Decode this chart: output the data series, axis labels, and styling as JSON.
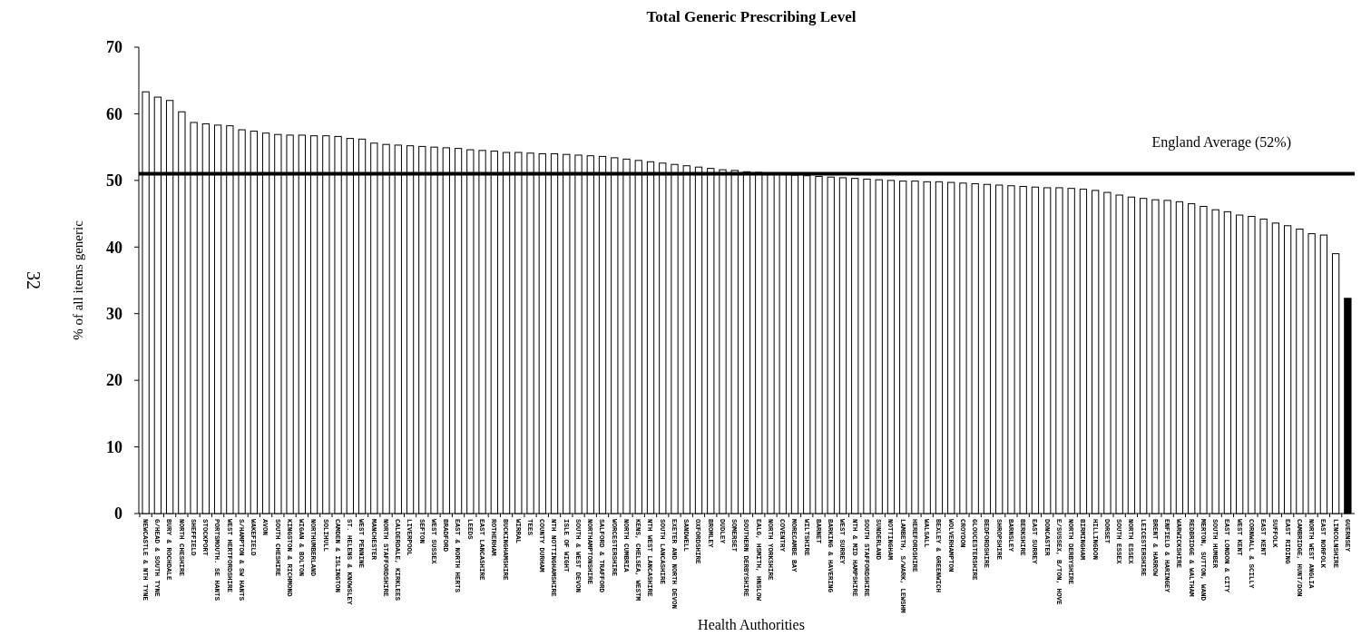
{
  "chart_data": {
    "type": "bar",
    "title": "Total Generic Prescribing Level",
    "xlabel": "Health Authorities",
    "ylabel": "% of all items generic",
    "categories": [
      "NEWCASTLE & NTH TYNE",
      "G/HEAD & SOUTH TYNE",
      "BURY & ROCHDALE",
      "NORTH CHESHIRE",
      "SHEFFIELD",
      "STOCKPORT",
      "PORTSMOUTH. SE HANTS",
      "WEST HERTFORDSHIRE",
      "S/HAMPTON & SW HANTS",
      "WAKEFIELD",
      "AVON",
      "SOUTH CHESHIRE",
      "KINGSTON & RICHMOND",
      "WIGAN & BOLTON",
      "NORTHUMBERLAND",
      "SOLIHULL",
      "CAMDEN & ISLINGTON",
      "ST. HELENS & KNOWSLEY",
      "WEST PENNINE",
      "MANCHESTER",
      "NORTH STAFFORDSHIRE",
      "CALDERDALE, KIRKLEES",
      "LIVERPOOL",
      "SEFTON",
      "WEST SUSSEX",
      "BRADFORD",
      "EAST & NORTH HERTS",
      "LEEDS",
      "EAST LANCASHIRE",
      "ROTHERHAM",
      "BUCKINGHAMSHIRE",
      "WIRRAL",
      "TEES",
      "COUNTY DURHAM",
      "NTH NOTTINGHAMSHIRE",
      "ISLE OF WIGHT",
      "SOUTH & WEST DEVON",
      "NORTHAMPTONSHIRE",
      "SALFORD & TRAFFORD",
      "WORCESTERSHIRE",
      "NORTH CUMBRIA",
      "KENS, CHELSEA, WESTM",
      "NTH WEST LANCASHIRE",
      "SOUTH LANCASHIRE",
      "EXETER AND NORTH DEVON",
      "SANDWELL",
      "OXFORDSHIRE",
      "BROMLEY",
      "DUDLEY",
      "SOMERSET",
      "SOUTHERN DERBYSHIRE",
      "EALG, HSMITH, HNSLOW",
      "NORTH YORKSHIRE",
      "COVENTRY",
      "MORECAMBE BAY",
      "WILTSHIRE",
      "BARNET",
      "BARKING & HAVERING",
      "WEST SURREY",
      "NTH & MID HAMPSHIRE",
      "SOUTH STAFFORDSHIRE",
      "SUNDERLAND",
      "NOTTINGHAM",
      "LAMBETH, S/WARK, LEWSHM",
      "HEREFORDSHIRE",
      "WALSALL",
      "BEXLEY & GREENWICH",
      "WOLVERHAMPTON",
      "CROYDON",
      "GLOUCESTERSHIRE",
      "BEDFORDSHIRE",
      "SHROPSHIRE",
      "BARNSLEY",
      "BERKSHIRE",
      "EAST SURREY",
      "DONCASTER",
      "E/SUSSEX, B/TON, HOVE",
      "NORTH DERBYSHIRE",
      "BIRMINGHAM",
      "HILLINGDON",
      "DORSET",
      "SOUTH ESSEX",
      "NORTH ESSEX",
      "LEICESTERSHIRE",
      "BRENT & HARROW",
      "ENFIELD & HARINGEY",
      "WARWICKSHIRE",
      "REDBRIDGE & WALTHAM",
      "MERTON, SUTTON, WAND",
      "SOUTH HUMBER",
      "EAST LONDON & CITY",
      "WEST KENT",
      "CORNWALL & SCILLY",
      "EAST KENT",
      "SUFFOLK",
      "EAST RIDING",
      "CAMBRIDGE, HUNT/DON",
      "NORTH WEST ANGLIA",
      "EAST NORFOLK",
      "LINCOLNSHIRE",
      "GUERNSEY"
    ],
    "values": [
      63.3,
      62.5,
      62,
      60.3,
      58.7,
      58.5,
      58.3,
      58.2,
      57.6,
      57.4,
      57.1,
      56.9,
      56.8,
      56.8,
      56.7,
      56.7,
      56.6,
      56.3,
      56.2,
      55.6,
      55.4,
      55.3,
      55.2,
      55.1,
      55,
      54.9,
      54.8,
      54.6,
      54.5,
      54.4,
      54.2,
      54.2,
      54.1,
      54,
      54,
      53.9,
      53.8,
      53.7,
      53.6,
      53.4,
      53.2,
      53,
      52.8,
      52.6,
      52.4,
      52.2,
      52,
      51.8,
      51.6,
      51.5,
      51.3,
      51.2,
      51.1,
      51,
      50.8,
      50.7,
      50.6,
      50.5,
      50.4,
      50.3,
      50.2,
      50.1,
      50,
      49.9,
      49.9,
      49.8,
      49.8,
      49.7,
      49.6,
      49.5,
      49.4,
      49.3,
      49.2,
      49.1,
      49,
      48.9,
      48.9,
      48.8,
      48.7,
      48.5,
      48.2,
      47.8,
      47.5,
      47.3,
      47.1,
      47,
      46.8,
      46.5,
      46.1,
      45.6,
      45.3,
      44.8,
      44.6,
      44.2,
      43.6,
      43.2,
      42.7,
      42,
      41.8,
      39,
      32.3
    ],
    "colors": [
      "#ffffff",
      "#ffffff",
      "#ffffff",
      "#ffffff",
      "#ffffff",
      "#ffffff",
      "#ffffff",
      "#ffffff",
      "#ffffff",
      "#ffffff",
      "#ffffff",
      "#ffffff",
      "#ffffff",
      "#ffffff",
      "#ffffff",
      "#ffffff",
      "#ffffff",
      "#ffffff",
      "#ffffff",
      "#ffffff",
      "#ffffff",
      "#ffffff",
      "#ffffff",
      "#ffffff",
      "#ffffff",
      "#ffffff",
      "#ffffff",
      "#ffffff",
      "#ffffff",
      "#ffffff",
      "#ffffff",
      "#ffffff",
      "#ffffff",
      "#ffffff",
      "#ffffff",
      "#ffffff",
      "#ffffff",
      "#ffffff",
      "#ffffff",
      "#ffffff",
      "#ffffff",
      "#ffffff",
      "#ffffff",
      "#ffffff",
      "#ffffff",
      "#ffffff",
      "#ffffff",
      "#ffffff",
      "#ffffff",
      "#ffffff",
      "#ffffff",
      "#ffffff",
      "#ffffff",
      "#ffffff",
      "#ffffff",
      "#ffffff",
      "#ffffff",
      "#ffffff",
      "#ffffff",
      "#ffffff",
      "#ffffff",
      "#ffffff",
      "#ffffff",
      "#ffffff",
      "#ffffff",
      "#ffffff",
      "#ffffff",
      "#ffffff",
      "#ffffff",
      "#ffffff",
      "#ffffff",
      "#ffffff",
      "#ffffff",
      "#ffffff",
      "#ffffff",
      "#ffffff",
      "#ffffff",
      "#ffffff",
      "#ffffff",
      "#ffffff",
      "#ffffff",
      "#ffffff",
      "#ffffff",
      "#ffffff",
      "#ffffff",
      "#ffffff",
      "#ffffff",
      "#ffffff",
      "#ffffff",
      "#ffffff",
      "#ffffff",
      "#ffffff",
      "#ffffff",
      "#ffffff",
      "#ffffff",
      "#ffffff",
      "#ffffff",
      "#ffffff",
      "#ffffff",
      "#ffffff",
      "#000000"
    ],
    "ylim": [
      0,
      70
    ],
    "yticks": [
      0,
      10,
      20,
      30,
      40,
      50,
      60,
      70
    ],
    "ref_lines": [
      {
        "axis": "y",
        "value": 51,
        "label": "England Average (52%)",
        "color": "#000000"
      }
    ],
    "annotations": [
      "32"
    ]
  }
}
